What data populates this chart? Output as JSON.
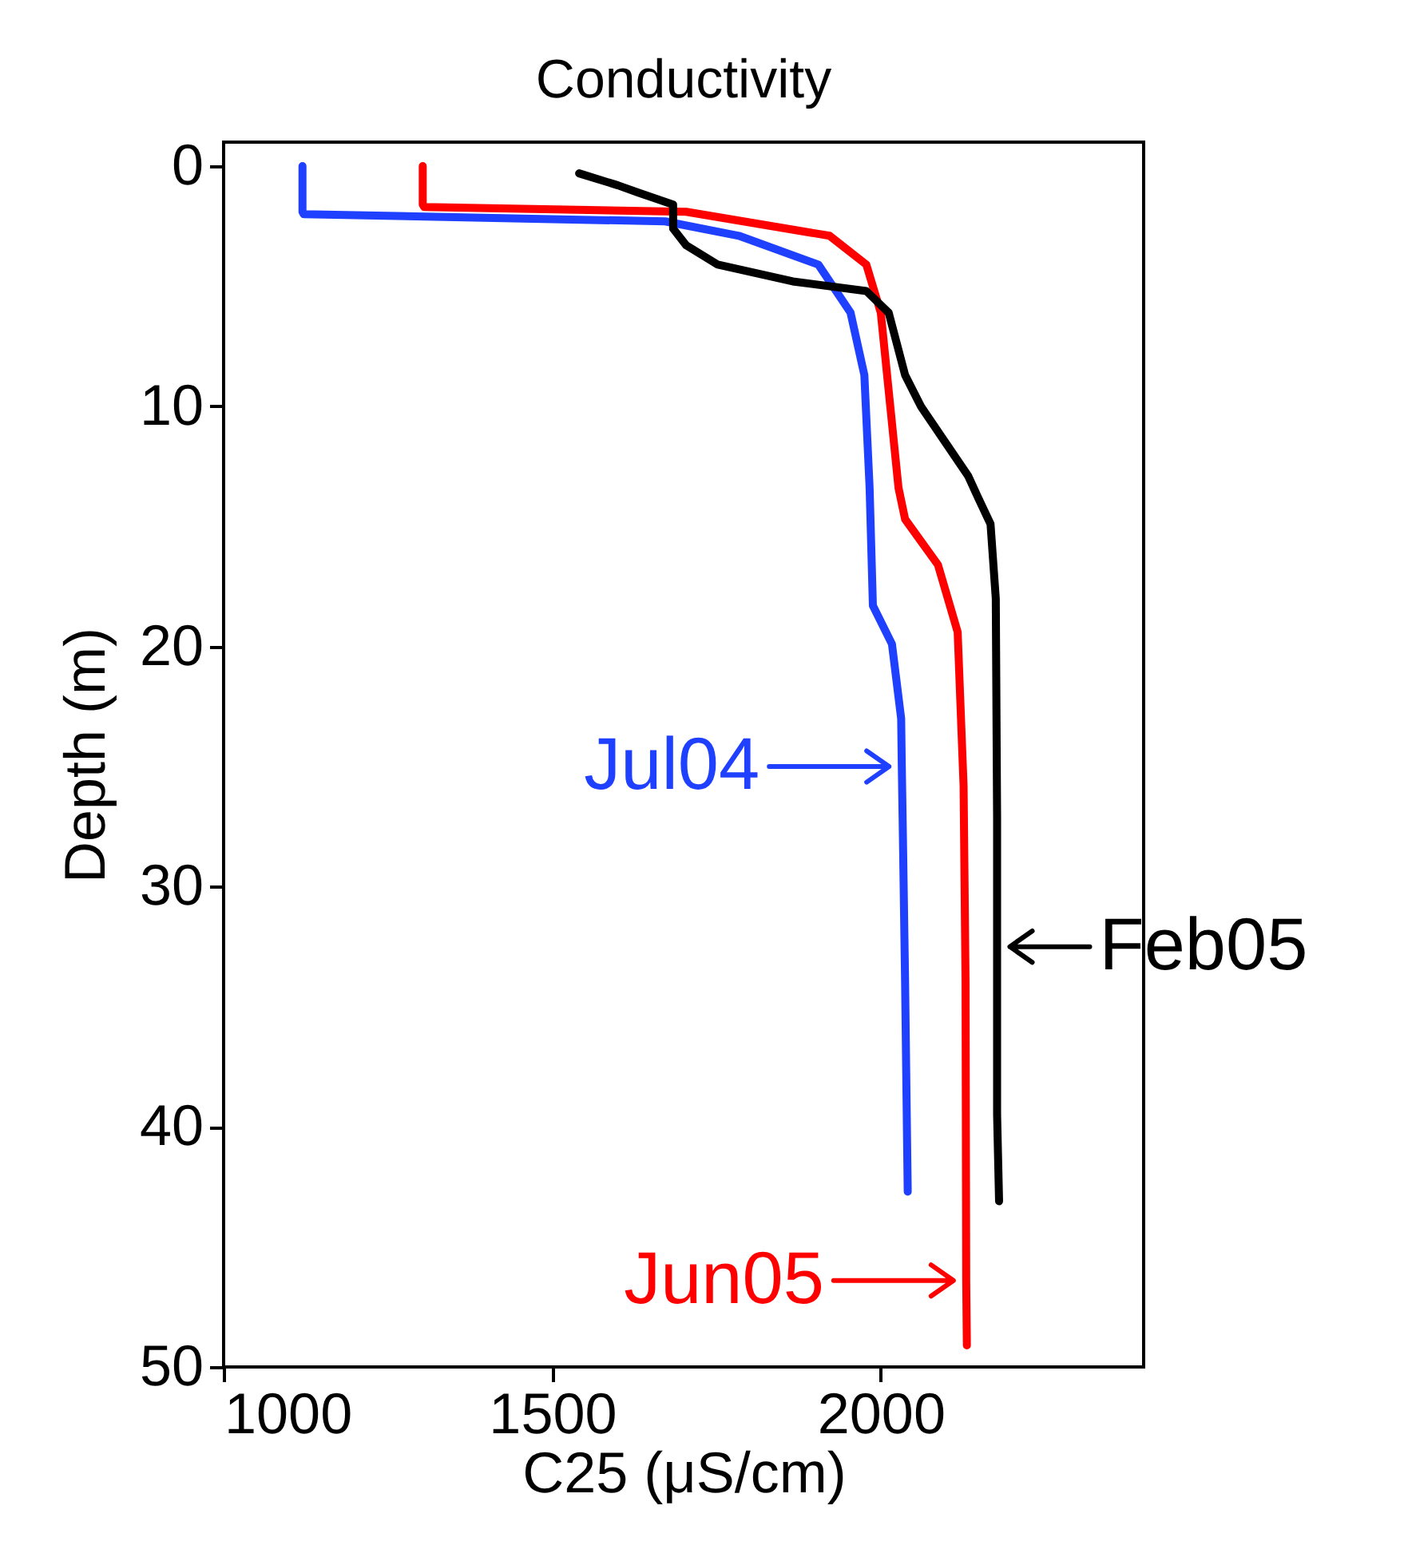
{
  "chart_data": {
    "type": "line",
    "title": "Conductivity",
    "xlabel": "C25 (μS/cm)",
    "ylabel": "Depth (m)",
    "xlim": [
      1000,
      2400
    ],
    "xticks": [
      1000,
      1500,
      2000
    ],
    "ylim": [
      50,
      -1
    ],
    "yticks": [
      0,
      10,
      20,
      30,
      40,
      50
    ],
    "series": [
      {
        "color": "#2040ff",
        "x": [
          1120,
          1120,
          1122,
          1672,
          1784,
          1905,
          1954,
          1975,
          1983,
          1988,
          2017,
          2031,
          2032,
          2034,
          2037,
          2041
        ],
        "values": [
          0,
          1.9,
          2.0,
          2.3,
          2.9,
          4.1,
          6.1,
          8.7,
          13.4,
          18.3,
          19.9,
          23,
          25,
          28.5,
          34,
          42.7
        ]
      },
      {
        "color": "#ff0000",
        "x": [
          1303,
          1303,
          1305,
          1704,
          1922,
          1978,
          2000,
          2027,
          2037,
          2087,
          2117,
          2126,
          2129,
          2130,
          2131
        ],
        "values": [
          0,
          1.6,
          1.7,
          1.9,
          2.9,
          4.1,
          6.1,
          13.4,
          14.7,
          16.6,
          19.4,
          25.8,
          34,
          46.4,
          49.1
        ]
      },
      {
        "color": "#000000",
        "x": [
          1541,
          1600,
          1631,
          1684,
          1684,
          1704,
          1752,
          1866,
          1978,
          2012,
          2037,
          2061,
          2133,
          2148,
          2167,
          2175,
          2177,
          2177,
          2177,
          2180
        ],
        "values": [
          0.3,
          0.8,
          1.1,
          1.6,
          2.6,
          3.3,
          4.1,
          4.8,
          5.2,
          6.1,
          8.7,
          10,
          12.9,
          13.8,
          14.9,
          18,
          27.1,
          32.5,
          39.5,
          43.1
        ]
      }
    ],
    "annotations": [
      {
        "text": "Jul04",
        "x": 2032,
        "y": 25
      },
      {
        "text": "Feb05",
        "x": 2177,
        "y": 32.5
      },
      {
        "text": "Jun05",
        "x": 2130,
        "y": 46.4
      }
    ]
  }
}
